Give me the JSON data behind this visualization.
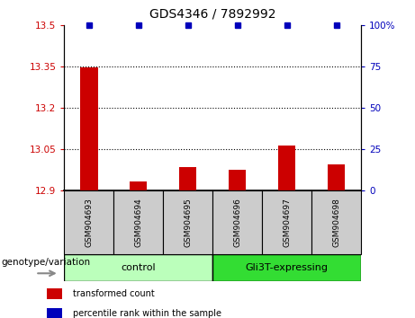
{
  "title": "GDS4346 / 7892992",
  "samples": [
    "GSM904693",
    "GSM904694",
    "GSM904695",
    "GSM904696",
    "GSM904697",
    "GSM904698"
  ],
  "transformed_counts": [
    13.348,
    12.935,
    12.985,
    12.975,
    13.065,
    12.995
  ],
  "percentile_ranks": [
    100,
    100,
    100,
    100,
    100,
    100
  ],
  "ylim_left": [
    12.9,
    13.5
  ],
  "ylim_right": [
    0,
    100
  ],
  "yticks_left": [
    12.9,
    13.05,
    13.2,
    13.35,
    13.5
  ],
  "yticks_right": [
    0,
    25,
    50,
    75,
    100
  ],
  "ytick_labels_left": [
    "12.9",
    "13.05",
    "13.2",
    "13.35",
    "13.5"
  ],
  "ytick_labels_right": [
    "0",
    "25",
    "50",
    "75",
    "100%"
  ],
  "hlines": [
    13.05,
    13.2,
    13.35
  ],
  "bar_color": "#cc0000",
  "dot_color": "#0000bb",
  "dot_size": 4,
  "bar_width": 0.35,
  "groups": [
    {
      "label": "control",
      "samples": [
        0,
        1,
        2
      ],
      "color": "#bbffbb"
    },
    {
      "label": "Gli3T-expressing",
      "samples": [
        3,
        4,
        5
      ],
      "color": "#33dd33"
    }
  ],
  "genotype_label": "genotype/variation",
  "legend_items": [
    {
      "color": "#cc0000",
      "label": "transformed count"
    },
    {
      "color": "#0000bb",
      "label": "percentile rank within the sample"
    }
  ],
  "tick_color_left": "#cc0000",
  "tick_color_right": "#0000bb",
  "background_label": "#cccccc",
  "grid_color": "#000000",
  "baseline": 12.9,
  "title_fontsize": 10,
  "tick_fontsize": 7.5,
  "sample_fontsize": 6.5,
  "group_fontsize": 8,
  "legend_fontsize": 7,
  "genotype_fontsize": 7.5
}
